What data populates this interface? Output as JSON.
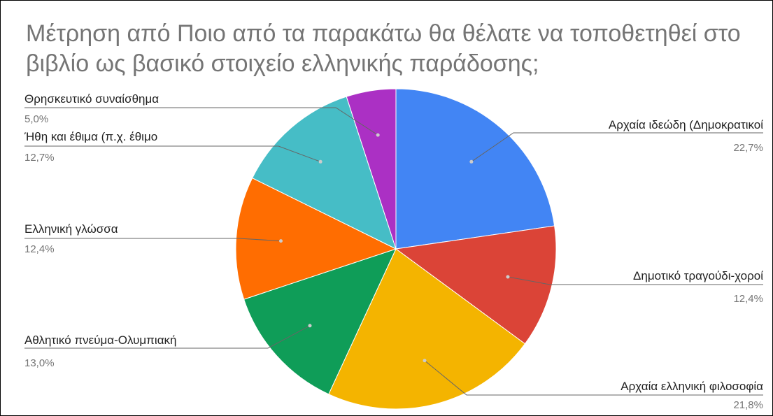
{
  "chart_data": {
    "type": "pie",
    "title": "Μέτρηση από Ποιο από τα παρακάτω θα θέλατε να τοποθετηθεί στο βιβλίο ως βασικό στοιχείο ελληνικής παράδοσης;",
    "slices": [
      {
        "label": "Αρχαία ιδεώδη (Δημοκρατικοί",
        "value": 22.7,
        "display": "22,7%",
        "color": "#4285f4"
      },
      {
        "label": "Δημοτικό τραγούδι-χοροί",
        "value": 12.4,
        "display": "12,4%",
        "color": "#db4437"
      },
      {
        "label": "Αρχαία ελληνική φιλοσοφία",
        "value": 21.8,
        "display": "21,8%",
        "color": "#f4b400"
      },
      {
        "label": "Αθλητικό πνεύμα-Ολυμπιακή",
        "value": 13.0,
        "display": "13,0%",
        "color": "#0f9d58"
      },
      {
        "label": "Ελληνική γλώσσα",
        "value": 12.4,
        "display": "12,4%",
        "color": "#ff6d01"
      },
      {
        "label": "Ήθη και έθιμα (π.χ. έθιμο",
        "value": 12.7,
        "display": "12,7%",
        "color": "#46bdc6"
      },
      {
        "label": "Θρησκευτικό συναίσθημα",
        "value": 5.0,
        "display": "5,0%",
        "color": "#ab30c4"
      }
    ]
  }
}
